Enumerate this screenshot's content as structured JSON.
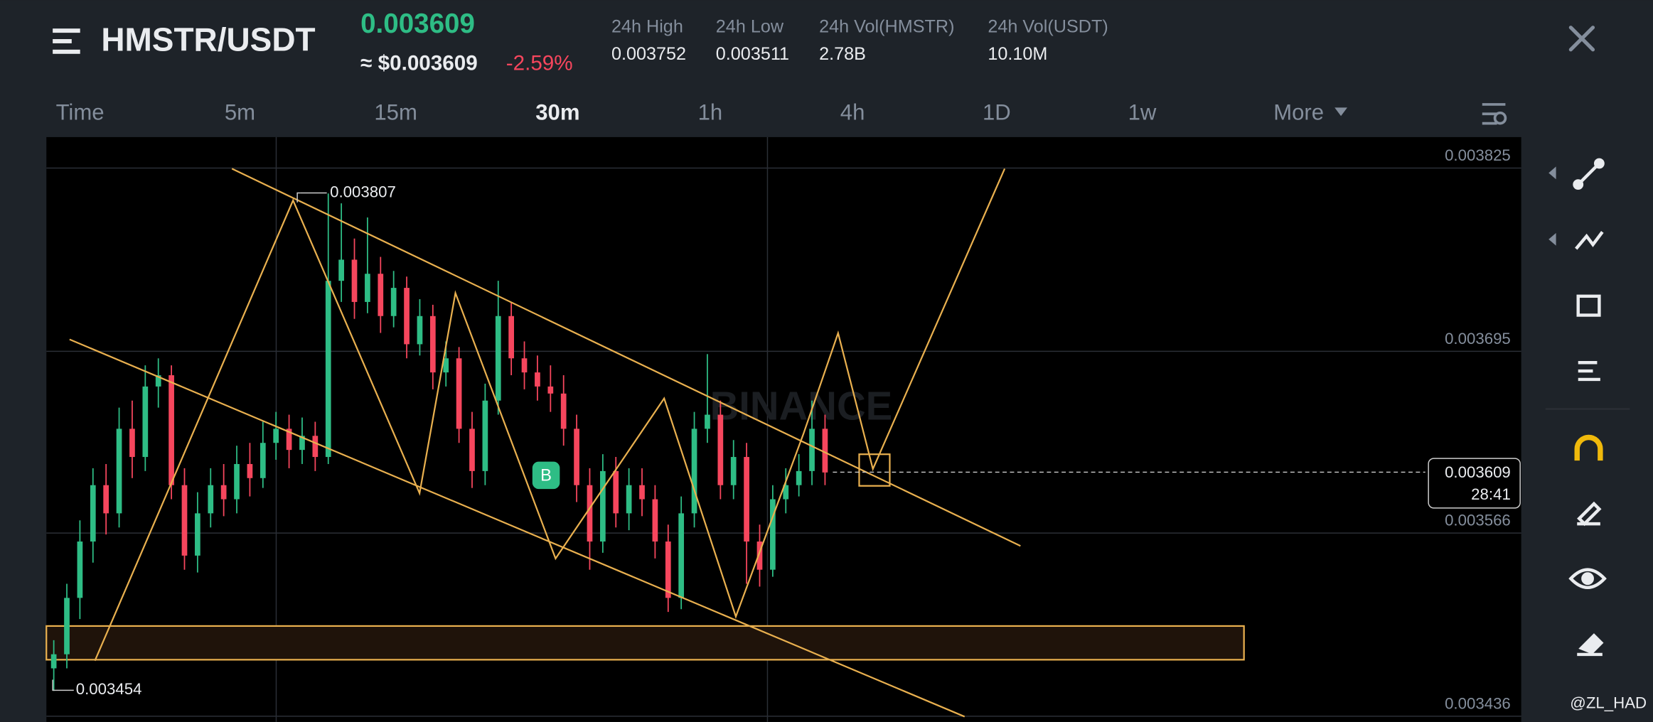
{
  "header": {
    "pair": "HMSTR/USDT",
    "price": "0.003609",
    "price_usd": "≈ $0.003609",
    "change": "-2.59%",
    "stats": [
      {
        "label": "24h High",
        "value": "0.003752"
      },
      {
        "label": "24h Low",
        "value": "0.003511"
      },
      {
        "label": "24h Vol(HMSTR)",
        "value": "2.78B"
      },
      {
        "label": "24h Vol(USDT)",
        "value": "10.10M"
      }
    ]
  },
  "timeframes": [
    "Time",
    "5m",
    "15m",
    "30m",
    "1h",
    "4h",
    "1D",
    "1w",
    "More"
  ],
  "chart_data": {
    "type": "candlestick",
    "watermark": "BINANCE",
    "marker": "B",
    "high_label": "0.003807",
    "low_label": "0.003454",
    "current_price": "0.003609",
    "countdown": "28:41",
    "ylim": [
      0.003432,
      0.003847
    ],
    "yticks": [
      0.003436,
      0.003566,
      0.003695,
      0.003825
    ],
    "up_color": "#2ebd85",
    "down_color": "#f6465d",
    "open": [
      0.00347,
      0.00348,
      0.00352,
      0.00356,
      0.0036,
      0.00358,
      0.00364,
      0.00362,
      0.00367,
      0.003678,
      0.0036,
      0.00355,
      0.00358,
      0.0036,
      0.00359,
      0.003615,
      0.003605,
      0.00363,
      0.00364,
      0.003625,
      0.003635,
      0.00362,
      0.003745,
      0.00376,
      0.00373,
      0.00375,
      0.00372,
      0.00374,
      0.0037,
      0.00372,
      0.00368,
      0.00369,
      0.00364,
      0.00361,
      0.00366,
      0.00372,
      0.00369,
      0.00368,
      0.00367,
      0.003665,
      0.00364,
      0.0036,
      0.00356,
      0.00361,
      0.00358,
      0.0036,
      0.00359,
      0.00356,
      0.00352,
      0.00358,
      0.00364,
      0.00365,
      0.0036,
      0.00362,
      0.00356,
      0.00354,
      0.00359,
      0.0036,
      0.00361,
      0.00364
    ],
    "high": [
      0.00349,
      0.00353,
      0.003575,
      0.003612,
      0.003615,
      0.003655,
      0.00366,
      0.003685,
      0.00369,
      0.003685,
      0.003612,
      0.003595,
      0.003612,
      0.003615,
      0.003628,
      0.00363,
      0.003645,
      0.003652,
      0.00365,
      0.003648,
      0.003645,
      0.003807,
      0.0038,
      0.003775,
      0.00379,
      0.003762,
      0.003752,
      0.003748,
      0.003732,
      0.003728,
      0.003702,
      0.003698,
      0.003652,
      0.003672,
      0.003745,
      0.00373,
      0.003702,
      0.003692,
      0.003685,
      0.003678,
      0.00365,
      0.003612,
      0.003622,
      0.00362,
      0.003612,
      0.003612,
      0.0036,
      0.003572,
      0.003592,
      0.003652,
      0.003693,
      0.00366,
      0.003632,
      0.00363,
      0.003572,
      0.0036,
      0.003612,
      0.003622,
      0.00366,
      0.00365
    ],
    "low": [
      0.003454,
      0.00347,
      0.003505,
      0.003545,
      0.003565,
      0.00357,
      0.003605,
      0.00361,
      0.003655,
      0.00359,
      0.00354,
      0.003538,
      0.00357,
      0.003578,
      0.00358,
      0.003592,
      0.003598,
      0.003618,
      0.003612,
      0.003615,
      0.00361,
      0.003615,
      0.00373,
      0.003718,
      0.003722,
      0.003708,
      0.003712,
      0.00369,
      0.003692,
      0.003668,
      0.00367,
      0.00363,
      0.003598,
      0.0036,
      0.00365,
      0.003678,
      0.003668,
      0.00366,
      0.003652,
      0.003628,
      0.003588,
      0.00354,
      0.003552,
      0.00357,
      0.003568,
      0.003578,
      0.003548,
      0.00351,
      0.003512,
      0.00357,
      0.00363,
      0.00359,
      0.00359,
      0.00353,
      0.003528,
      0.003535,
      0.00358,
      0.003592,
      0.0036,
      0.0036
    ],
    "close": [
      0.00348,
      0.00352,
      0.00356,
      0.0036,
      0.00358,
      0.00364,
      0.00362,
      0.00367,
      0.003678,
      0.0036,
      0.00355,
      0.00358,
      0.0036,
      0.00359,
      0.003615,
      0.003605,
      0.00363,
      0.00364,
      0.003625,
      0.003635,
      0.00362,
      0.003745,
      0.00376,
      0.00373,
      0.00375,
      0.00372,
      0.00374,
      0.0037,
      0.00372,
      0.00368,
      0.00369,
      0.00364,
      0.00361,
      0.00366,
      0.00372,
      0.00369,
      0.00368,
      0.00367,
      0.003665,
      0.00364,
      0.0036,
      0.00356,
      0.00361,
      0.00358,
      0.0036,
      0.00359,
      0.00356,
      0.00352,
      0.00358,
      0.00364,
      0.00365,
      0.0036,
      0.00362,
      0.00356,
      0.00354,
      0.00359,
      0.0036,
      0.00361,
      0.00364,
      0.003609
    ]
  },
  "watermark_user": "@ZL_HAD"
}
